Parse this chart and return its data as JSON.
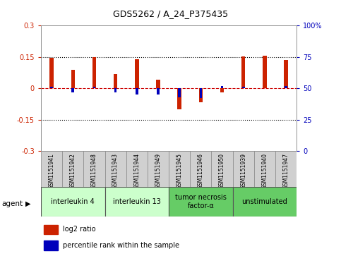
{
  "title": "GDS5262 / A_24_P375435",
  "samples": [
    "GSM1151941",
    "GSM1151942",
    "GSM1151948",
    "GSM1151943",
    "GSM1151944",
    "GSM1151949",
    "GSM1151945",
    "GSM1151946",
    "GSM1151950",
    "GSM1151939",
    "GSM1151940",
    "GSM1151947"
  ],
  "log2_ratio": [
    0.145,
    0.09,
    0.148,
    0.068,
    0.14,
    0.04,
    -0.1,
    -0.065,
    -0.018,
    0.152,
    0.157,
    0.135
  ],
  "percentile_dev": [
    1,
    -3,
    1,
    -3,
    -5,
    -5,
    -7,
    -8,
    2,
    1,
    0,
    2
  ],
  "agents": [
    {
      "label": "interleukin 4",
      "color": "#ccffcc",
      "start": 0,
      "end": 3
    },
    {
      "label": "interleukin 13",
      "color": "#ccffcc",
      "start": 3,
      "end": 6
    },
    {
      "label": "tumor necrosis\nfactor-α",
      "color": "#66cc66",
      "start": 6,
      "end": 9
    },
    {
      "label": "unstimulated",
      "color": "#66cc66",
      "start": 9,
      "end": 12
    }
  ],
  "ylim": [
    -0.3,
    0.3
  ],
  "yticks_left": [
    -0.3,
    -0.15,
    0,
    0.15,
    0.3
  ],
  "yticks_right": [
    0,
    25,
    50,
    75,
    100
  ],
  "bar_color_red": "#cc2200",
  "bar_color_blue": "#0000bb",
  "hline_color": "#cc0000",
  "dotted_color": "#000000",
  "bg_color": "#ffffff",
  "red_bar_width": 0.18,
  "blue_bar_width": 0.12,
  "percentile_scale": 0.006,
  "title_fontsize": 9,
  "tick_fontsize": 7,
  "sample_fontsize": 5.5,
  "agent_fontsize": 7,
  "legend_fontsize": 7
}
